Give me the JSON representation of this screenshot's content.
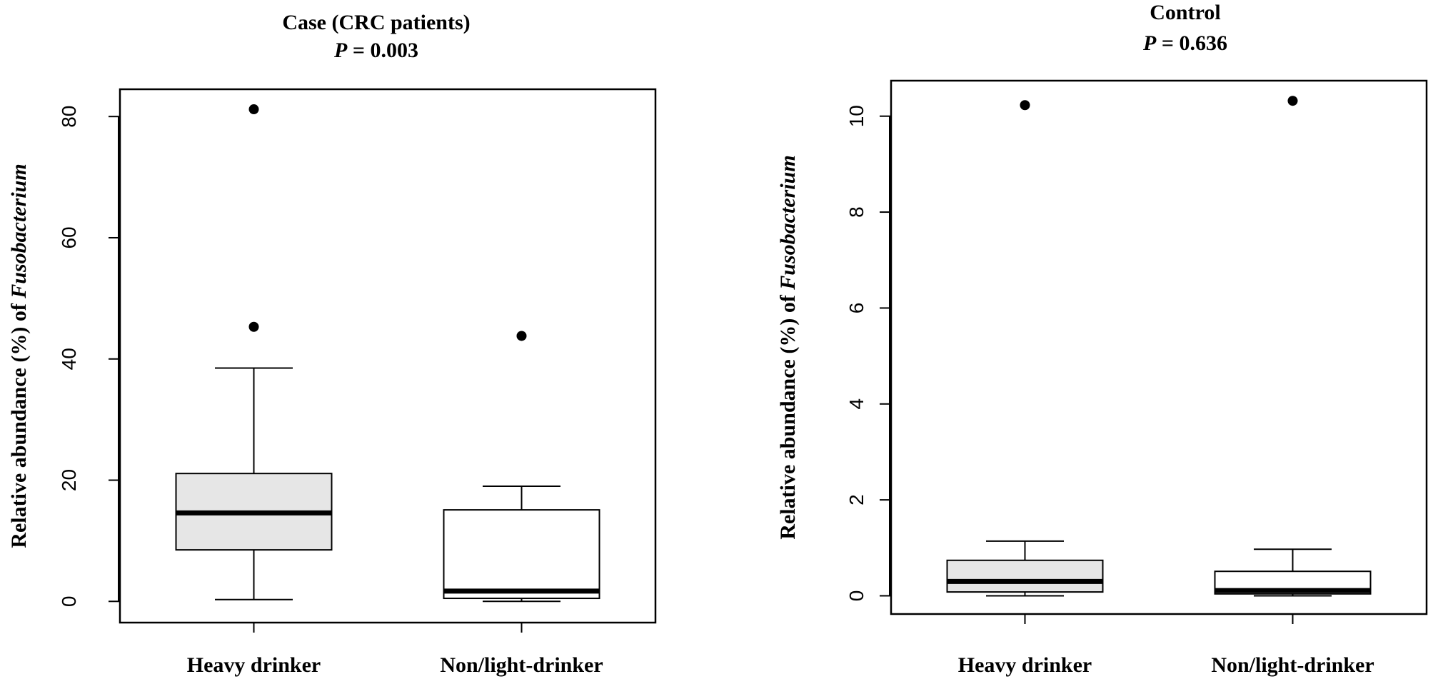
{
  "chart_data": [
    {
      "type": "box",
      "title": "Case (CRC patients)",
      "subtitle": "P = 0.003",
      "y_label": "Relative abundance (%) of Fusobacterium",
      "categories": [
        "Heavy drinker",
        "Non/light-drinker"
      ],
      "colors": [
        "#e6e6e6",
        "#ffffff"
      ],
      "boxes": [
        {
          "min": 0.3,
          "q1": 8.5,
          "median": 14.6,
          "q3": 21.1,
          "max": 38.5,
          "outliers": [
            45.3,
            81.2
          ]
        },
        {
          "min": 0,
          "q1": 0.5,
          "median": 1.7,
          "q3": 15.1,
          "max": 19.0,
          "outliers": [
            43.8
          ]
        }
      ],
      "ylim": [
        -3.5,
        84.5
      ],
      "yticks": [
        0,
        20,
        40,
        60,
        80
      ]
    },
    {
      "type": "box",
      "title": "Control",
      "subtitle": "P = 0.636",
      "y_label": "Relative abundance (%) of Fusobacterium",
      "categories": [
        "Heavy drinker",
        "Non/light-drinker"
      ],
      "colors": [
        "#e6e6e6",
        "#ffffff"
      ],
      "boxes": [
        {
          "min": 0,
          "q1": 0.08,
          "median": 0.3,
          "q3": 0.74,
          "max": 1.14,
          "outliers": [
            10.23
          ]
        },
        {
          "min": 0,
          "q1": 0.04,
          "median": 0.11,
          "q3": 0.51,
          "max": 0.97,
          "outliers": [
            10.32
          ]
        }
      ],
      "ylim": [
        -0.38,
        10.74
      ],
      "yticks": [
        0,
        2,
        4,
        6,
        8,
        10
      ]
    }
  ]
}
